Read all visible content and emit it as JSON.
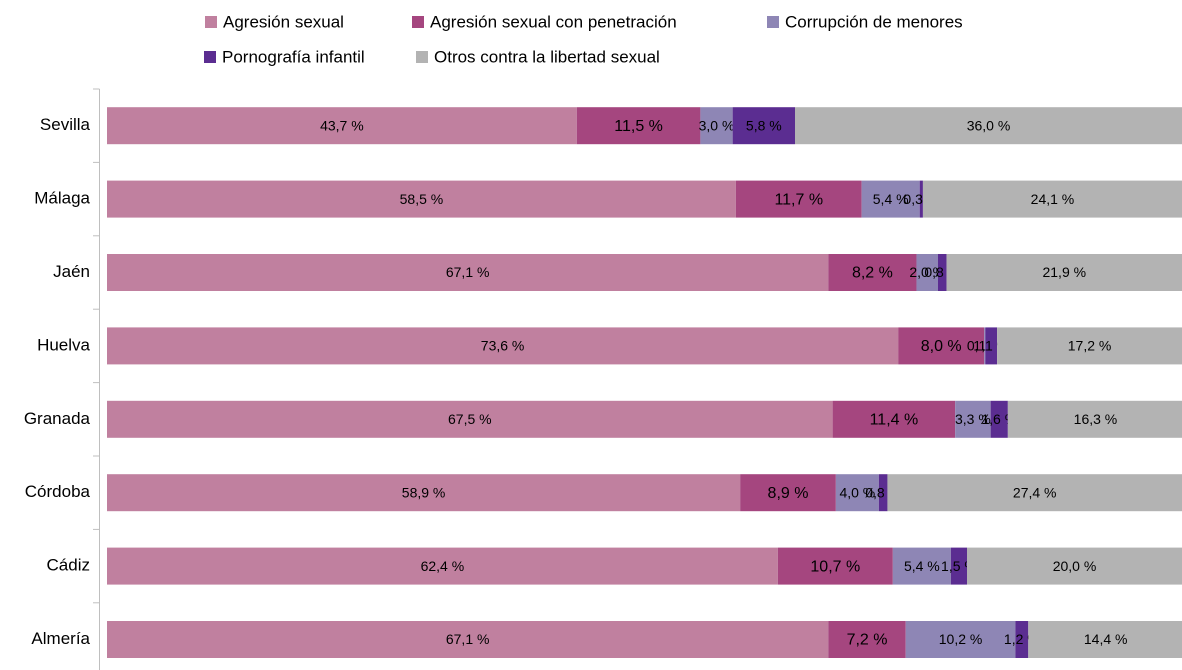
{
  "chart_data": {
    "type": "stacked_barh",
    "categories": [
      "Sevilla",
      "Málaga",
      "Jaén",
      "Huelva",
      "Granada",
      "Córdoba",
      "Cádiz",
      "Almería"
    ],
    "xlim": [
      0,
      100
    ],
    "series": [
      {
        "name": "Agresión sexual",
        "color": "#c0809f",
        "values": [
          43.7,
          58.5,
          67.1,
          73.6,
          67.5,
          58.9,
          62.4,
          67.1
        ],
        "value_labels": [
          "43,7 %",
          "58,5 %",
          "67,1 %",
          "73,6 %",
          "67,5 %",
          "58,9 %",
          "62,4 %",
          "67,1 %"
        ]
      },
      {
        "name": "Agresión sexual con penetración",
        "color": "#a5467f",
        "values": [
          11.5,
          11.7,
          8.2,
          8.0,
          11.4,
          8.9,
          10.7,
          7.2
        ],
        "value_labels": [
          "11,5 %",
          "11,7 %",
          "8,2 %",
          "8,0 %",
          "11,4 %",
          "8,9 %",
          "10,7 %",
          "7,2 %"
        ]
      },
      {
        "name": "Corrupción de menores",
        "color": "#8e86b5",
        "values": [
          3.0,
          5.4,
          2.0,
          0.1,
          3.3,
          4.0,
          5.4,
          10.2
        ],
        "value_labels": [
          "3,0 %",
          "5,4 %",
          "2,0 %",
          "0,1 %",
          "3,3 %",
          "4,0 %",
          "5,4 %",
          "10,2 %"
        ]
      },
      {
        "name": "Pornografía infantil",
        "color": "#5b2d91",
        "values": [
          5.8,
          0.3,
          0.8,
          1.1,
          1.6,
          0.8,
          1.5,
          1.2
        ],
        "value_labels": [
          "5,8 %",
          "0,3 %",
          "0,8 %",
          "1,1 %",
          "1,6 %",
          "0,8 %",
          "1,5 %",
          "1,2 %"
        ]
      },
      {
        "name": "Otros contra la libertad sexual",
        "color": "#b3b3b3",
        "values": [
          36.0,
          24.1,
          21.9,
          17.2,
          16.3,
          27.4,
          20.0,
          14.4
        ],
        "value_labels": [
          "36,0 %",
          "24,1 %",
          "21,9 %",
          "17,2 %",
          "16,3 %",
          "27,4 %",
          "20,0 %",
          "14,4 %"
        ]
      }
    ]
  }
}
